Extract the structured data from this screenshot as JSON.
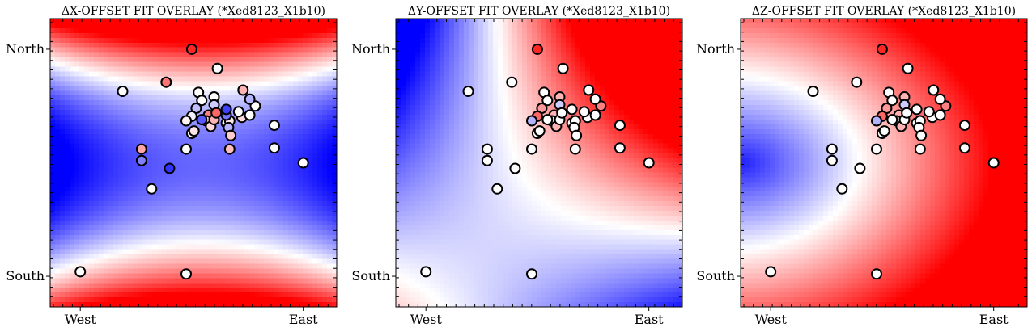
{
  "figure": {
    "titles": [
      "ΔX-OFFSET FIT OVERLAY (*Xed8123_X1b10)",
      "ΔY-OFFSET FIT OVERLAY (*Xed8123_X1b10)",
      "ΔZ-OFFSET FIT OVERLAY (*Xed8123_X1b10)"
    ],
    "colors": {
      "negative": "#0000ff",
      "zero": "#ffffff",
      "positive": "#ff0000",
      "frame": "#000000"
    }
  },
  "chart_data": [
    {
      "type": "heatmap",
      "title": "ΔX-OFFSET FIT OVERLAY (*Xed8123_X1b10)",
      "x_tick_labels": [
        "West",
        "East"
      ],
      "x_tick_values": [
        -1,
        1
      ],
      "y_tick_labels": [
        "North",
        "South"
      ],
      "y_tick_values": [
        1,
        -1
      ],
      "xlim": [
        -1.27,
        1.3
      ],
      "ylim": [
        -1.27,
        1.27
      ],
      "colormap": "bwr",
      "field": {
        "kind": "quad-x",
        "a": 0.55,
        "b": 0.0,
        "c": 1.1,
        "d": 0.18,
        "e": 0.0,
        "f": -0.05
      },
      "points": [
        {
          "x": -1.0,
          "y": -0.96,
          "v": 0.0
        },
        {
          "x": -0.62,
          "y": 0.63,
          "v": 0.0
        },
        {
          "x": -0.36,
          "y": -0.23,
          "v": 0.0
        },
        {
          "x": -0.23,
          "y": 0.71,
          "v": 0.55
        },
        {
          "x": 0.0,
          "y": 1.0,
          "v": 0.85
        },
        {
          "x": 0.23,
          "y": 0.83,
          "v": 0.0
        },
        {
          "x": 0.06,
          "y": 0.62,
          "v": 0.0
        },
        {
          "x": 0.09,
          "y": 0.55,
          "v": 0.0
        },
        {
          "x": 0.04,
          "y": 0.48,
          "v": -0.25
        },
        {
          "x": 0.2,
          "y": 0.58,
          "v": 0.0
        },
        {
          "x": 0.2,
          "y": 0.51,
          "v": -0.2
        },
        {
          "x": 0.15,
          "y": 0.42,
          "v": 0.5
        },
        {
          "x": 0.13,
          "y": 0.37,
          "v": 0.15
        },
        {
          "x": 0.17,
          "y": 0.32,
          "v": 0.15
        },
        {
          "x": 0.0,
          "y": 0.41,
          "v": -0.05
        },
        {
          "x": -0.05,
          "y": 0.37,
          "v": 0.05
        },
        {
          "x": 0.0,
          "y": 0.26,
          "v": 0.0
        },
        {
          "x": 0.02,
          "y": 0.28,
          "v": 0.1
        },
        {
          "x": 0.31,
          "y": 0.35,
          "v": 0.0
        },
        {
          "x": 0.34,
          "y": 0.37,
          "v": 0.1
        },
        {
          "x": 0.33,
          "y": 0.31,
          "v": -0.3
        },
        {
          "x": 0.35,
          "y": 0.24,
          "v": 0.2
        },
        {
          "x": 0.2,
          "y": 0.38,
          "v": 0.3
        },
        {
          "x": 0.22,
          "y": 0.44,
          "v": 0.6
        },
        {
          "x": 0.31,
          "y": 0.42,
          "v": -0.55
        },
        {
          "x": 0.45,
          "y": 0.4,
          "v": 0.15
        },
        {
          "x": 0.42,
          "y": 0.45,
          "v": 0.0
        },
        {
          "x": 0.57,
          "y": 0.5,
          "v": 0.0
        },
        {
          "x": 0.46,
          "y": 0.64,
          "v": 0.3
        },
        {
          "x": 0.52,
          "y": 0.56,
          "v": -0.3
        },
        {
          "x": 0.52,
          "y": 0.42,
          "v": 0.0
        },
        {
          "x": 0.74,
          "y": 0.33,
          "v": 0.0
        },
        {
          "x": 0.31,
          "y": 0.47,
          "v": -0.75
        },
        {
          "x": 0.09,
          "y": 0.38,
          "v": -0.65
        },
        {
          "x": -0.45,
          "y": 0.12,
          "v": 0.35
        },
        {
          "x": -0.45,
          "y": 0.02,
          "v": -0.5
        },
        {
          "x": -0.05,
          "y": 0.12,
          "v": 0.0
        },
        {
          "x": 0.34,
          "y": 0.12,
          "v": 0.25
        },
        {
          "x": 0.74,
          "y": 0.13,
          "v": 0.0
        },
        {
          "x": -0.2,
          "y": -0.05,
          "v": -0.8
        },
        {
          "x": 1.0,
          "y": 0.0,
          "v": 0.0
        },
        {
          "x": -0.05,
          "y": -0.98,
          "v": 0.0
        }
      ]
    },
    {
      "type": "heatmap",
      "title": "ΔY-OFFSET FIT OVERLAY (*Xed8123_X1b10)",
      "x_tick_labels": [
        "West",
        "East"
      ],
      "x_tick_values": [
        -1,
        1
      ],
      "y_tick_labels": [
        "North",
        "South"
      ],
      "y_tick_values": [
        1,
        -1
      ],
      "xlim": [
        -1.27,
        1.3
      ],
      "ylim": [
        -1.27,
        1.27
      ],
      "colormap": "bwr",
      "field": {
        "kind": "saddle-y"
      },
      "points": [
        {
          "x": -1.0,
          "y": -0.96,
          "v": 0.0
        },
        {
          "x": -0.62,
          "y": 0.63,
          "v": 0.0
        },
        {
          "x": -0.36,
          "y": -0.23,
          "v": 0.0
        },
        {
          "x": -0.23,
          "y": 0.71,
          "v": 0.0
        },
        {
          "x": 0.0,
          "y": 1.0,
          "v": 0.85
        },
        {
          "x": 0.23,
          "y": 0.83,
          "v": 0.0
        },
        {
          "x": 0.06,
          "y": 0.62,
          "v": 0.0
        },
        {
          "x": 0.09,
          "y": 0.55,
          "v": 0.0
        },
        {
          "x": 0.04,
          "y": 0.48,
          "v": 0.4
        },
        {
          "x": 0.2,
          "y": 0.58,
          "v": 0.3
        },
        {
          "x": 0.2,
          "y": 0.51,
          "v": -0.2
        },
        {
          "x": 0.15,
          "y": 0.42,
          "v": 0.3
        },
        {
          "x": 0.13,
          "y": 0.37,
          "v": 0.0
        },
        {
          "x": 0.17,
          "y": 0.32,
          "v": 0.3
        },
        {
          "x": 0.0,
          "y": 0.41,
          "v": 0.6
        },
        {
          "x": -0.05,
          "y": 0.37,
          "v": -0.3
        },
        {
          "x": 0.0,
          "y": 0.26,
          "v": 0.0
        },
        {
          "x": 0.02,
          "y": 0.28,
          "v": 0.0
        },
        {
          "x": 0.31,
          "y": 0.35,
          "v": 0.0
        },
        {
          "x": 0.34,
          "y": 0.37,
          "v": 0.0
        },
        {
          "x": 0.33,
          "y": 0.31,
          "v": 0.0
        },
        {
          "x": 0.35,
          "y": 0.24,
          "v": 0.0
        },
        {
          "x": 0.2,
          "y": 0.38,
          "v": 0.0
        },
        {
          "x": 0.22,
          "y": 0.44,
          "v": 0.0
        },
        {
          "x": 0.31,
          "y": 0.47,
          "v": 0.0
        },
        {
          "x": 0.45,
          "y": 0.4,
          "v": 0.0
        },
        {
          "x": 0.42,
          "y": 0.45,
          "v": 0.0
        },
        {
          "x": 0.57,
          "y": 0.5,
          "v": 0.5
        },
        {
          "x": 0.46,
          "y": 0.64,
          "v": 0.0
        },
        {
          "x": 0.52,
          "y": 0.56,
          "v": 0.0
        },
        {
          "x": 0.52,
          "y": 0.42,
          "v": 0.0
        },
        {
          "x": 0.74,
          "y": 0.33,
          "v": 0.0
        },
        {
          "x": 0.09,
          "y": 0.38,
          "v": 0.0
        },
        {
          "x": -0.45,
          "y": 0.12,
          "v": 0.0
        },
        {
          "x": -0.45,
          "y": 0.02,
          "v": 0.0
        },
        {
          "x": -0.05,
          "y": 0.12,
          "v": 0.0
        },
        {
          "x": 0.34,
          "y": 0.12,
          "v": 0.0
        },
        {
          "x": 0.74,
          "y": 0.13,
          "v": 0.0
        },
        {
          "x": -0.2,
          "y": -0.05,
          "v": 0.0
        },
        {
          "x": 1.0,
          "y": 0.0,
          "v": 0.0
        },
        {
          "x": -0.05,
          "y": -0.98,
          "v": 0.0
        }
      ]
    },
    {
      "type": "heatmap",
      "title": "ΔZ-OFFSET FIT OVERLAY (*Xed8123_X1b10)",
      "x_tick_labels": [
        "West",
        "East"
      ],
      "x_tick_values": [
        -1,
        1
      ],
      "y_tick_labels": [
        "North",
        "South"
      ],
      "y_tick_values": [
        1,
        -1
      ],
      "xlim": [
        -1.27,
        1.3
      ],
      "ylim": [
        -1.27,
        1.27
      ],
      "colormap": "bwr",
      "field": {
        "kind": "quad-z"
      },
      "points": [
        {
          "x": -1.0,
          "y": -0.96,
          "v": 0.0
        },
        {
          "x": -0.62,
          "y": 0.63,
          "v": 0.0
        },
        {
          "x": -0.36,
          "y": -0.23,
          "v": 0.0
        },
        {
          "x": -0.23,
          "y": 0.71,
          "v": 0.0
        },
        {
          "x": 0.0,
          "y": 1.0,
          "v": 0.85
        },
        {
          "x": 0.23,
          "y": 0.83,
          "v": 0.0
        },
        {
          "x": 0.06,
          "y": 0.62,
          "v": 0.0
        },
        {
          "x": 0.09,
          "y": 0.55,
          "v": 0.0
        },
        {
          "x": 0.04,
          "y": 0.48,
          "v": 0.4
        },
        {
          "x": 0.2,
          "y": 0.58,
          "v": 0.3
        },
        {
          "x": 0.2,
          "y": 0.51,
          "v": -0.2
        },
        {
          "x": 0.15,
          "y": 0.42,
          "v": 0.3
        },
        {
          "x": 0.13,
          "y": 0.37,
          "v": 0.0
        },
        {
          "x": 0.17,
          "y": 0.32,
          "v": 0.3
        },
        {
          "x": 0.0,
          "y": 0.41,
          "v": 0.6
        },
        {
          "x": -0.05,
          "y": 0.37,
          "v": -0.3
        },
        {
          "x": 0.0,
          "y": 0.26,
          "v": 0.0
        },
        {
          "x": 0.02,
          "y": 0.28,
          "v": 0.0
        },
        {
          "x": 0.31,
          "y": 0.35,
          "v": 0.0
        },
        {
          "x": 0.34,
          "y": 0.37,
          "v": 0.0
        },
        {
          "x": 0.33,
          "y": 0.31,
          "v": 0.0
        },
        {
          "x": 0.35,
          "y": 0.24,
          "v": 0.0
        },
        {
          "x": 0.2,
          "y": 0.38,
          "v": 0.0
        },
        {
          "x": 0.22,
          "y": 0.44,
          "v": 0.0
        },
        {
          "x": 0.31,
          "y": 0.47,
          "v": 0.0
        },
        {
          "x": 0.45,
          "y": 0.4,
          "v": 0.0
        },
        {
          "x": 0.42,
          "y": 0.45,
          "v": 0.0
        },
        {
          "x": 0.57,
          "y": 0.5,
          "v": 0.5
        },
        {
          "x": 0.46,
          "y": 0.64,
          "v": 0.0
        },
        {
          "x": 0.52,
          "y": 0.56,
          "v": 0.0
        },
        {
          "x": 0.52,
          "y": 0.42,
          "v": 0.0
        },
        {
          "x": 0.74,
          "y": 0.33,
          "v": 0.0
        },
        {
          "x": 0.09,
          "y": 0.38,
          "v": 0.0
        },
        {
          "x": -0.45,
          "y": 0.12,
          "v": 0.0
        },
        {
          "x": -0.45,
          "y": 0.02,
          "v": 0.0
        },
        {
          "x": -0.05,
          "y": 0.12,
          "v": 0.0
        },
        {
          "x": 0.34,
          "y": 0.12,
          "v": 0.0
        },
        {
          "x": 0.74,
          "y": 0.13,
          "v": 0.0
        },
        {
          "x": -0.2,
          "y": -0.05,
          "v": 0.0
        },
        {
          "x": 1.0,
          "y": 0.0,
          "v": 0.0
        },
        {
          "x": -0.05,
          "y": -0.98,
          "v": 0.0
        }
      ]
    }
  ]
}
